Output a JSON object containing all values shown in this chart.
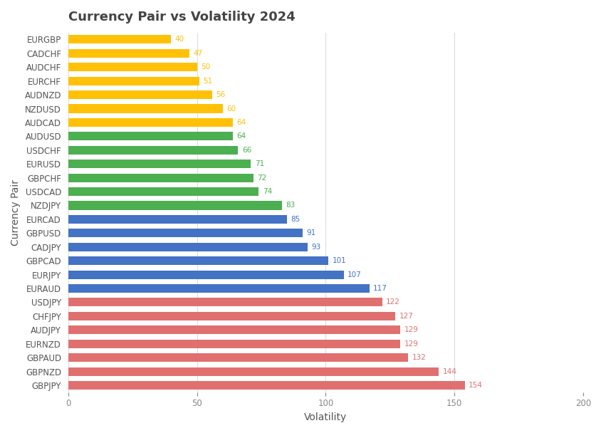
{
  "title": "Currency Pair vs Volatility 2024",
  "xlabel": "Volatility",
  "ylabel": "Currency Pair",
  "categories": [
    "EURGBP",
    "CADCHF",
    "AUDCHF",
    "EURCHF",
    "AUDNZD",
    "NZDUSD",
    "AUDCAD",
    "AUDUSD",
    "USDCHF",
    "EURUSD",
    "GBPCHF",
    "USDCAD",
    "NZDJPY",
    "EURCAD",
    "GBPUSD",
    "CADJPY",
    "GBPCAD",
    "EURJPY",
    "EURAUD",
    "USDJPY",
    "CHFJPY",
    "AUDJPY",
    "EURNZD",
    "GBPAUD",
    "GBPNZD",
    "GBPJPY"
  ],
  "values": [
    40,
    47,
    50,
    51,
    56,
    60,
    64,
    64,
    66,
    71,
    72,
    74,
    83,
    85,
    91,
    93,
    101,
    107,
    117,
    122,
    127,
    129,
    129,
    132,
    144,
    154
  ],
  "colors": [
    "#FFC107",
    "#FFC107",
    "#FFC107",
    "#FFC107",
    "#FFC107",
    "#FFC107",
    "#FFC107",
    "#4CAF50",
    "#4CAF50",
    "#4CAF50",
    "#4CAF50",
    "#4CAF50",
    "#4CAF50",
    "#4472C4",
    "#4472C4",
    "#4472C4",
    "#4472C4",
    "#4472C4",
    "#4472C4",
    "#E07070",
    "#E07070",
    "#E07070",
    "#E07070",
    "#E07070",
    "#E07070",
    "#E07070"
  ],
  "xlim": [
    0,
    200
  ],
  "bar_height": 0.62,
  "background_color": "#FFFFFF",
  "grid_color": "#DDDDDD",
  "title_fontsize": 13,
  "title_color": "#444444",
  "axis_label_fontsize": 10,
  "tick_fontsize": 8.5,
  "value_fontsize": 7.5,
  "xticks": [
    0,
    50,
    100,
    150,
    200
  ]
}
